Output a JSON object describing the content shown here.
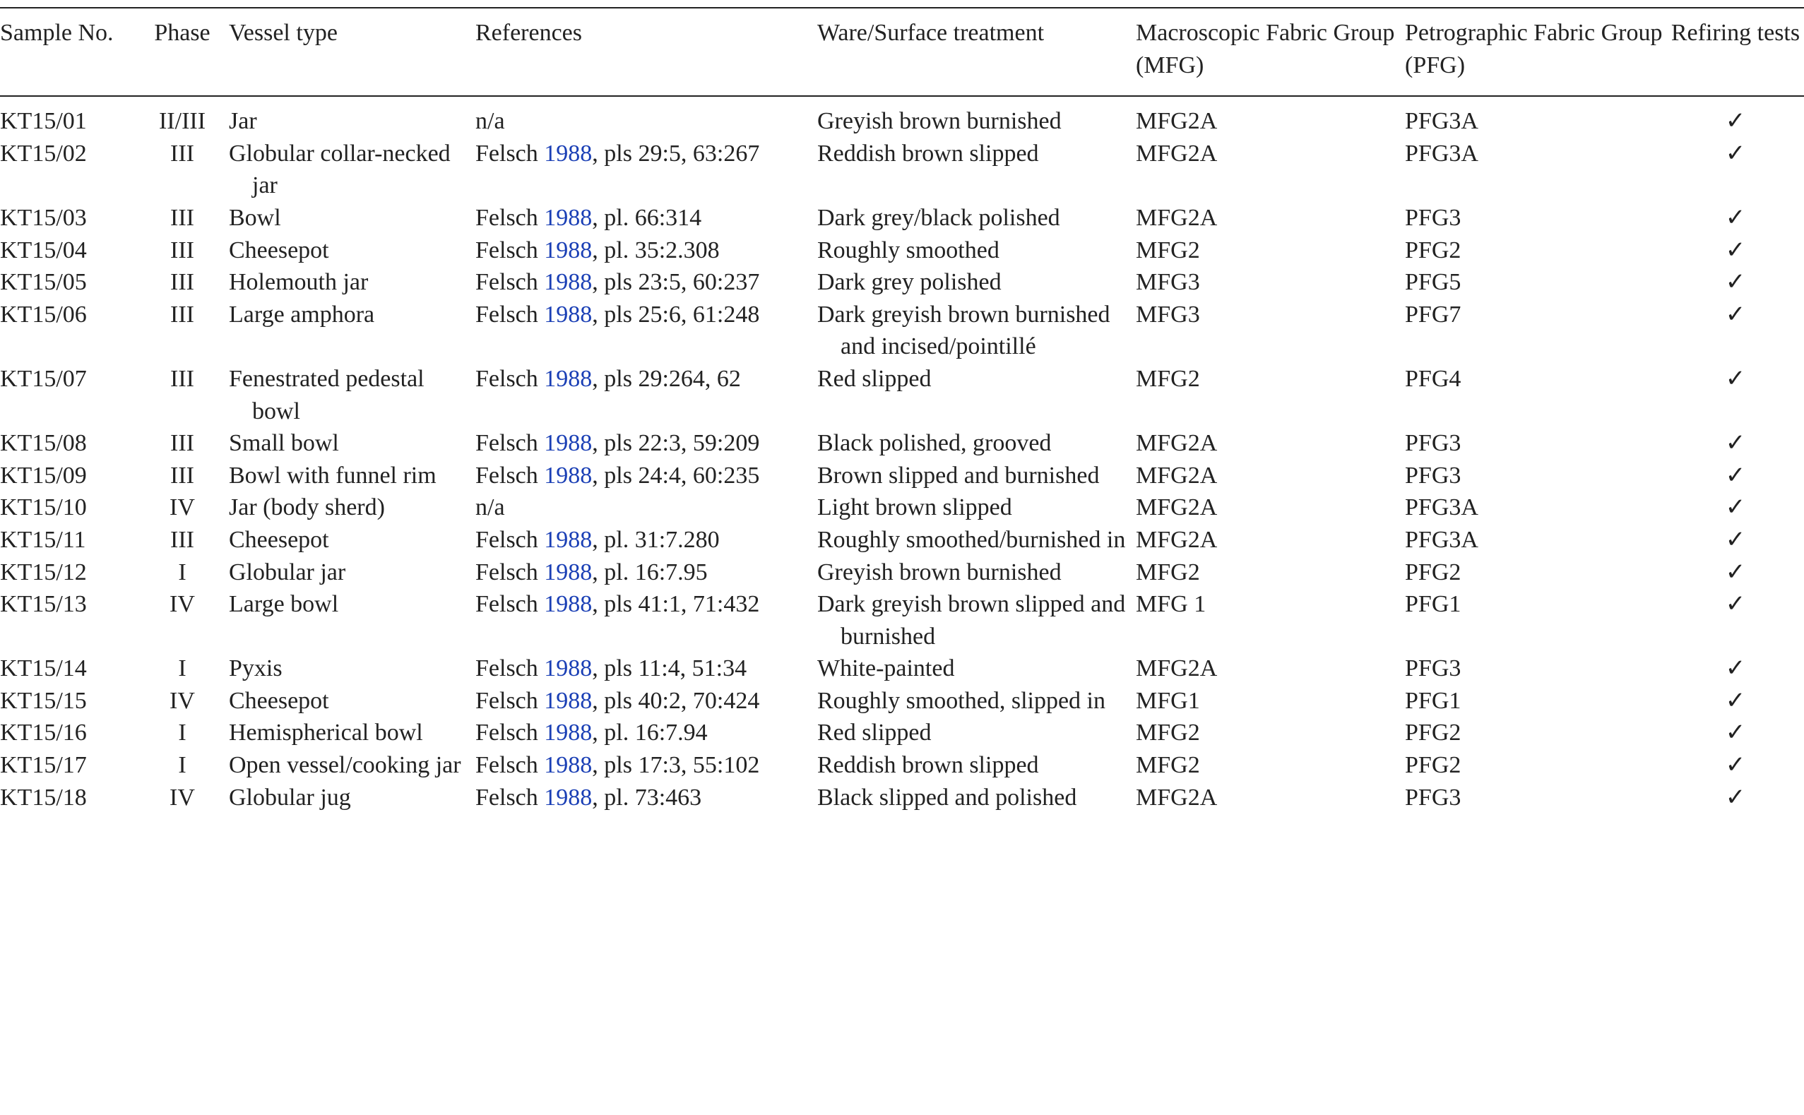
{
  "table": {
    "header": [
      "Sample No.",
      "Phase",
      "Vessel type",
      "References",
      "Ware/Surface treatment",
      "Macroscopic Fabric Group (MFG)",
      "Petrographic Fabric Group (PFG)",
      "Refiring tests"
    ],
    "rows": [
      [
        "KT15/01",
        "II/III",
        "Jar",
        "n/a",
        "Greyish brown burnished",
        "MFG2A",
        "PFG3A",
        "✓"
      ],
      [
        "KT15/02",
        "III",
        "Globular collar-necked jar",
        {
          "author": "Felsch",
          "year": "1988",
          "rest": ", pls 29:5, 63:267"
        },
        "Reddish brown slipped",
        "MFG2A",
        "PFG3A",
        "✓"
      ],
      [
        "KT15/03",
        "III",
        "Bowl",
        {
          "author": "Felsch",
          "year": "1988",
          "rest": ", pl. 66:314"
        },
        "Dark grey/black polished",
        "MFG2A",
        "PFG3",
        "✓"
      ],
      [
        "KT15/04",
        "III",
        "Cheesepot",
        {
          "author": "Felsch",
          "year": "1988",
          "rest": ", pl. 35:2.308"
        },
        "Roughly smoothed",
        "MFG2",
        "PFG2",
        "✓"
      ],
      [
        "KT15/05",
        "III",
        "Holemouth jar",
        {
          "author": "Felsch",
          "year": "1988",
          "rest": ", pls 23:5, 60:237"
        },
        "Dark grey polished",
        "MFG3",
        "PFG5",
        "✓"
      ],
      [
        "KT15/06",
        "III",
        "Large amphora",
        {
          "author": "Felsch",
          "year": "1988",
          "rest": ", pls 25:6, 61:248"
        },
        "Dark greyish brown burnished and incised/pointillé",
        "MFG3",
        "PFG7",
        "✓"
      ],
      [
        "KT15/07",
        "III",
        "Fenestrated pedestal bowl",
        {
          "author": "Felsch",
          "year": "1988",
          "rest": ", pls 29:264, 62"
        },
        "Red slipped",
        "MFG2",
        "PFG4",
        "✓"
      ],
      [
        "KT15/08",
        "III",
        "Small bowl",
        {
          "author": "Felsch",
          "year": "1988",
          "rest": ", pls 22:3, 59:209"
        },
        "Black polished, grooved",
        "MFG2A",
        "PFG3",
        "✓"
      ],
      [
        "KT15/09",
        "III",
        "Bowl with funnel rim",
        {
          "author": "Felsch",
          "year": "1988",
          "rest": ", pls 24:4, 60:235"
        },
        "Brown slipped and burnished",
        "MFG2A",
        "PFG3",
        "✓"
      ],
      [
        "KT15/10",
        "IV",
        "Jar (body sherd)",
        "n/a",
        "Light brown slipped",
        "MFG2A",
        "PFG3A",
        "✓"
      ],
      [
        "KT15/11",
        "III",
        "Cheesepot",
        {
          "author": "Felsch",
          "year": "1988",
          "rest": ", pl. 31:7.280"
        },
        "Roughly smoothed/burnished in",
        "MFG2A",
        "PFG3A",
        "✓"
      ],
      [
        "KT15/12",
        "I",
        "Globular jar",
        {
          "author": "Felsch",
          "year": "1988",
          "rest": ", pl. 16:7.95"
        },
        "Greyish brown burnished",
        "MFG2",
        "PFG2",
        "✓"
      ],
      [
        "KT15/13",
        "IV",
        "Large bowl",
        {
          "author": "Felsch",
          "year": "1988",
          "rest": ", pls 41:1, 71:432"
        },
        "Dark greyish brown slipped and burnished",
        "MFG 1",
        "PFG1",
        "✓"
      ],
      [
        "KT15/14",
        "I",
        "Pyxis",
        {
          "author": "Felsch",
          "year": "1988",
          "rest": ", pls 11:4, 51:34"
        },
        "White-painted",
        "MFG2A",
        "PFG3",
        "✓"
      ],
      [
        "KT15/15",
        "IV",
        "Cheesepot",
        {
          "author": "Felsch",
          "year": "1988",
          "rest": ", pls 40:2, 70:424"
        },
        "Roughly smoothed, slipped in",
        "MFG1",
        "PFG1",
        "✓"
      ],
      [
        "KT15/16",
        "I",
        "Hemispherical bowl",
        {
          "author": "Felsch",
          "year": "1988",
          "rest": ", pl. 16:7.94"
        },
        "Red slipped",
        "MFG2",
        "PFG2",
        "✓"
      ],
      [
        "KT15/17",
        "I",
        "Open vessel/cooking jar",
        {
          "author": "Felsch",
          "year": "1988",
          "rest": ", pls 17:3, 55:102"
        },
        "Reddish brown slipped",
        "MFG2",
        "PFG2",
        "✓"
      ],
      [
        "KT15/18",
        "IV",
        "Globular jug",
        {
          "author": "Felsch",
          "year": "1988",
          "rest": ", pl. 73:463"
        },
        "Black slipped and polished",
        "MFG2A",
        "PFG3",
        "✓"
      ]
    ]
  }
}
